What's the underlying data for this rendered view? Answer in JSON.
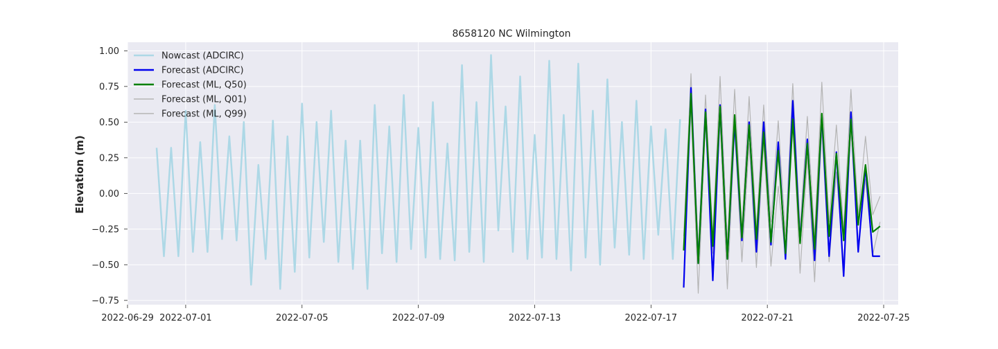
{
  "chart_data": {
    "type": "line",
    "title": "8658120 NC Wilmington",
    "xlabel": "",
    "ylabel": "Elevation (m)",
    "x_ticks": [
      "2022-06-29",
      "2022-07-01",
      "2022-07-05",
      "2022-07-09",
      "2022-07-13",
      "2022-07-17",
      "2022-07-21",
      "2022-07-25"
    ],
    "y_ticks": [
      "−0.75",
      "−0.50",
      "−0.25",
      "0.00",
      "0.25",
      "0.50",
      "0.75",
      "1.00"
    ],
    "xlim": [
      "2022-06-29 00:00",
      "2022-07-25 12:00"
    ],
    "ylim": [
      -0.78,
      1.06
    ],
    "grid": true,
    "legend_position": "upper-left",
    "background": "#eaeaf2",
    "series": [
      {
        "name": "Nowcast (ADCIRC)",
        "color": "#add8e6",
        "x": [
          "2022-06-30 00:00",
          "2022-06-30 06:00",
          "2022-06-30 12:00",
          "2022-06-30 18:00",
          "2022-07-01 00:00",
          "2022-07-01 06:00",
          "2022-07-01 12:00",
          "2022-07-01 18:00",
          "2022-07-02 00:00",
          "2022-07-02 06:00",
          "2022-07-02 12:00",
          "2022-07-02 18:00",
          "2022-07-03 00:00",
          "2022-07-03 06:00",
          "2022-07-03 12:00",
          "2022-07-03 18:00",
          "2022-07-04 00:00",
          "2022-07-04 06:00",
          "2022-07-04 12:00",
          "2022-07-04 18:00",
          "2022-07-05 00:00",
          "2022-07-05 06:00",
          "2022-07-05 12:00",
          "2022-07-05 18:00",
          "2022-07-06 00:00",
          "2022-07-06 06:00",
          "2022-07-06 12:00",
          "2022-07-06 18:00",
          "2022-07-07 00:00",
          "2022-07-07 06:00",
          "2022-07-07 12:00",
          "2022-07-07 18:00",
          "2022-07-08 00:00",
          "2022-07-08 06:00",
          "2022-07-08 12:00",
          "2022-07-08 18:00",
          "2022-07-09 00:00",
          "2022-07-09 06:00",
          "2022-07-09 12:00",
          "2022-07-09 18:00",
          "2022-07-10 00:00",
          "2022-07-10 06:00",
          "2022-07-10 12:00",
          "2022-07-10 18:00",
          "2022-07-11 00:00",
          "2022-07-11 06:00",
          "2022-07-11 12:00",
          "2022-07-11 18:00",
          "2022-07-12 00:00",
          "2022-07-12 06:00",
          "2022-07-12 12:00",
          "2022-07-12 18:00",
          "2022-07-13 00:00",
          "2022-07-13 06:00",
          "2022-07-13 12:00",
          "2022-07-13 18:00",
          "2022-07-14 00:00",
          "2022-07-14 06:00",
          "2022-07-14 12:00",
          "2022-07-14 18:00",
          "2022-07-15 00:00",
          "2022-07-15 06:00",
          "2022-07-15 12:00",
          "2022-07-15 18:00",
          "2022-07-16 00:00",
          "2022-07-16 06:00",
          "2022-07-16 12:00",
          "2022-07-16 18:00",
          "2022-07-17 00:00",
          "2022-07-17 06:00",
          "2022-07-17 12:00",
          "2022-07-17 18:00",
          "2022-07-18 00:00"
        ],
        "values": [
          0.32,
          -0.44,
          0.32,
          -0.44,
          0.58,
          -0.41,
          0.36,
          -0.41,
          0.62,
          -0.32,
          0.4,
          -0.33,
          0.5,
          -0.64,
          0.2,
          -0.46,
          0.51,
          -0.67,
          0.4,
          -0.55,
          0.63,
          -0.45,
          0.5,
          -0.34,
          0.58,
          -0.48,
          0.37,
          -0.53,
          0.37,
          -0.67,
          0.62,
          -0.42,
          0.47,
          -0.48,
          0.69,
          -0.39,
          0.46,
          -0.45,
          0.64,
          -0.46,
          0.35,
          -0.47,
          0.9,
          -0.41,
          0.64,
          -0.48,
          0.97,
          -0.26,
          0.61,
          -0.41,
          0.82,
          -0.46,
          0.41,
          -0.45,
          0.93,
          -0.46,
          0.55,
          -0.54,
          0.91,
          -0.45,
          0.58,
          -0.5,
          0.8,
          -0.38,
          0.5,
          -0.43,
          0.65,
          -0.46,
          0.47,
          -0.29,
          0.45,
          -0.46,
          0.52
        ]
      },
      {
        "name": "Forecast (ADCIRC)",
        "color": "#0000ee",
        "x": [
          "2022-07-18 03:00",
          "2022-07-18 09:00",
          "2022-07-18 15:00",
          "2022-07-18 21:00",
          "2022-07-19 03:00",
          "2022-07-19 09:00",
          "2022-07-19 15:00",
          "2022-07-19 21:00",
          "2022-07-20 03:00",
          "2022-07-20 09:00",
          "2022-07-20 15:00",
          "2022-07-20 21:00",
          "2022-07-21 03:00",
          "2022-07-21 09:00",
          "2022-07-21 15:00",
          "2022-07-21 21:00",
          "2022-07-22 03:00",
          "2022-07-22 09:00",
          "2022-07-22 15:00",
          "2022-07-22 21:00",
          "2022-07-23 03:00",
          "2022-07-23 09:00",
          "2022-07-23 15:00",
          "2022-07-23 21:00",
          "2022-07-24 03:00",
          "2022-07-24 09:00",
          "2022-07-24 15:00",
          "2022-07-24 21:00"
        ],
        "values": [
          -0.66,
          0.74,
          -0.49,
          0.59,
          -0.61,
          0.62,
          -0.46,
          0.5,
          -0.33,
          0.5,
          -0.41,
          0.5,
          -0.36,
          0.36,
          -0.46,
          0.65,
          -0.34,
          0.38,
          -0.47,
          0.55,
          -0.44,
          0.29,
          -0.58,
          0.57,
          -0.41,
          0.19,
          -0.44,
          -0.44
        ]
      },
      {
        "name": "Forecast (ML, Q50)",
        "color": "#008000",
        "x": [
          "2022-07-18 03:00",
          "2022-07-18 09:00",
          "2022-07-18 15:00",
          "2022-07-18 21:00",
          "2022-07-19 03:00",
          "2022-07-19 09:00",
          "2022-07-19 15:00",
          "2022-07-19 21:00",
          "2022-07-20 03:00",
          "2022-07-20 09:00",
          "2022-07-20 15:00",
          "2022-07-20 21:00",
          "2022-07-21 03:00",
          "2022-07-21 09:00",
          "2022-07-21 15:00",
          "2022-07-21 21:00",
          "2022-07-22 03:00",
          "2022-07-22 09:00",
          "2022-07-22 15:00",
          "2022-07-22 21:00",
          "2022-07-23 03:00",
          "2022-07-23 09:00",
          "2022-07-23 15:00",
          "2022-07-23 21:00",
          "2022-07-24 03:00",
          "2022-07-24 09:00",
          "2022-07-24 15:00",
          "2022-07-24 21:00"
        ],
        "values": [
          -0.4,
          0.7,
          -0.49,
          0.57,
          -0.37,
          0.61,
          -0.46,
          0.55,
          -0.31,
          0.48,
          -0.32,
          0.43,
          -0.34,
          0.3,
          -0.42,
          0.52,
          -0.35,
          0.35,
          -0.39,
          0.56,
          -0.3,
          0.28,
          -0.33,
          0.52,
          -0.22,
          0.2,
          -0.27,
          -0.23
        ]
      },
      {
        "name": "Forecast (ML, Q01)",
        "color": "#b4b4b4",
        "x": [
          "2022-07-18 03:00",
          "2022-07-18 09:00",
          "2022-07-18 15:00",
          "2022-07-18 21:00",
          "2022-07-19 03:00",
          "2022-07-19 09:00",
          "2022-07-19 15:00",
          "2022-07-19 21:00",
          "2022-07-20 03:00",
          "2022-07-20 09:00",
          "2022-07-20 15:00",
          "2022-07-20 21:00",
          "2022-07-21 03:00",
          "2022-07-21 09:00",
          "2022-07-21 15:00",
          "2022-07-21 21:00",
          "2022-07-22 03:00",
          "2022-07-22 09:00",
          "2022-07-22 15:00",
          "2022-07-22 21:00",
          "2022-07-23 03:00",
          "2022-07-23 09:00",
          "2022-07-23 15:00",
          "2022-07-23 21:00",
          "2022-07-24 03:00",
          "2022-07-24 09:00",
          "2022-07-24 15:00",
          "2022-07-24 21:00"
        ],
        "values": [
          -0.4,
          0.6,
          -0.7,
          0.5,
          -0.42,
          0.5,
          -0.67,
          0.45,
          -0.48,
          0.35,
          -0.52,
          0.35,
          -0.51,
          0.05,
          -0.45,
          0.55,
          -0.56,
          0.25,
          -0.62,
          0.45,
          -0.48,
          0.15,
          -0.5,
          0.45,
          -0.4,
          0.1,
          -0.43,
          -0.2
        ]
      },
      {
        "name": "Forecast (ML, Q99)",
        "color": "#b4b4b4",
        "x": [
          "2022-07-18 03:00",
          "2022-07-18 09:00",
          "2022-07-18 15:00",
          "2022-07-18 21:00",
          "2022-07-19 03:00",
          "2022-07-19 09:00",
          "2022-07-19 15:00",
          "2022-07-19 21:00",
          "2022-07-20 03:00",
          "2022-07-20 09:00",
          "2022-07-20 15:00",
          "2022-07-20 21:00",
          "2022-07-21 03:00",
          "2022-07-21 09:00",
          "2022-07-21 15:00",
          "2022-07-21 21:00",
          "2022-07-22 03:00",
          "2022-07-22 09:00",
          "2022-07-22 15:00",
          "2022-07-22 21:00",
          "2022-07-23 03:00",
          "2022-07-23 09:00",
          "2022-07-23 15:00",
          "2022-07-23 21:00",
          "2022-07-24 03:00",
          "2022-07-24 09:00",
          "2022-07-24 15:00",
          "2022-07-24 21:00"
        ],
        "values": [
          -0.3,
          0.84,
          -0.4,
          0.69,
          -0.3,
          0.82,
          -0.35,
          0.73,
          -0.25,
          0.68,
          -0.25,
          0.62,
          -0.2,
          0.51,
          -0.3,
          0.77,
          -0.25,
          0.54,
          -0.3,
          0.78,
          -0.2,
          0.48,
          -0.25,
          0.73,
          -0.15,
          0.4,
          -0.15,
          -0.02
        ]
      }
    ]
  }
}
